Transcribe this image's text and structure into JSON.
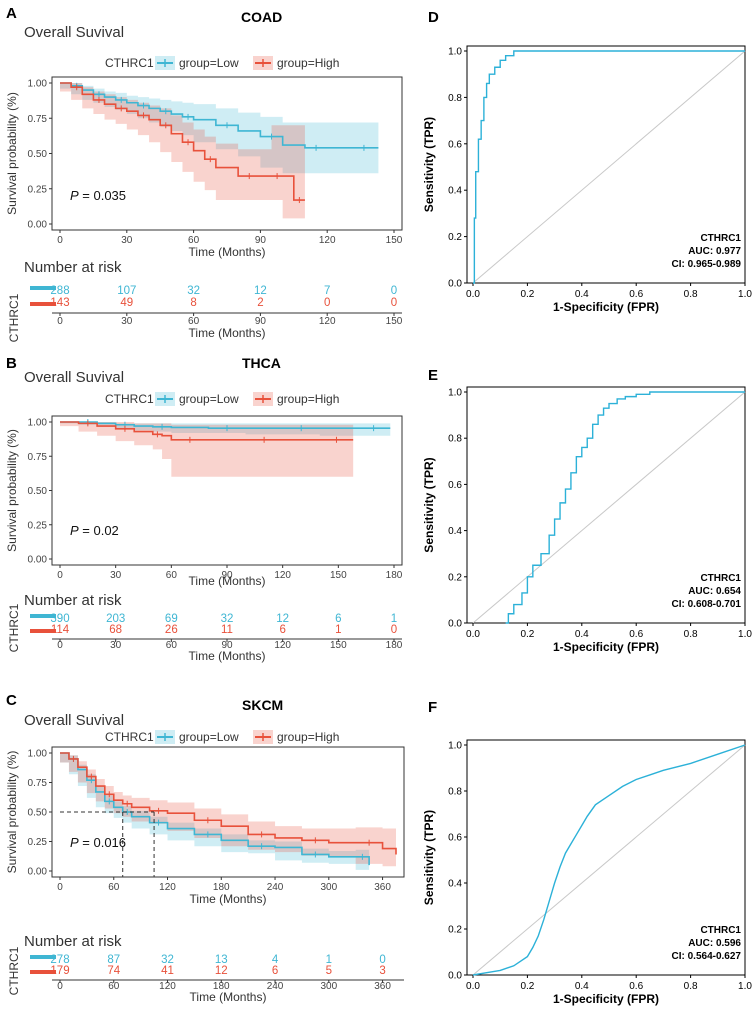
{
  "colors": {
    "low": "#3fb6d3",
    "high": "#e8513b",
    "roc": "#2cb1d8",
    "diag": "#c8c8c8"
  },
  "chart_data": [
    {
      "type": "line",
      "panel": "A",
      "title": "COAD",
      "subtitle": "Overall Suvival",
      "legend_title": "CTHRC1",
      "legend": [
        "group=Low",
        "group=High"
      ],
      "xlabel": "Time (Months)",
      "ylabel": "Survival probability (%)",
      "xlim": [
        0,
        150
      ],
      "ylim": [
        0,
        1
      ],
      "xticks": [
        0,
        30,
        60,
        90,
        120,
        150
      ],
      "yticks": [
        "0.00",
        "0.25",
        "0.50",
        "0.75",
        "1.00"
      ],
      "pvalue_label": "P",
      "pvalue": "= 0.035",
      "series": [
        {
          "name": "group=Low",
          "x": [
            0,
            5,
            10,
            15,
            20,
            25,
            30,
            35,
            40,
            45,
            50,
            55,
            60,
            70,
            80,
            90,
            100,
            110,
            120,
            130,
            143
          ],
          "y": [
            1,
            0.98,
            0.95,
            0.92,
            0.9,
            0.88,
            0.86,
            0.84,
            0.82,
            0.8,
            0.78,
            0.76,
            0.74,
            0.7,
            0.66,
            0.62,
            0.56,
            0.54,
            0.54,
            0.54,
            0.54
          ],
          "lower": [
            1,
            0.96,
            0.92,
            0.88,
            0.86,
            0.83,
            0.81,
            0.78,
            0.75,
            0.72,
            0.69,
            0.66,
            0.63,
            0.58,
            0.53,
            0.48,
            0.4,
            0.36,
            0.36,
            0.36,
            0.36
          ],
          "upper": [
            1,
            1,
            0.98,
            0.96,
            0.94,
            0.93,
            0.91,
            0.9,
            0.89,
            0.88,
            0.87,
            0.86,
            0.85,
            0.82,
            0.79,
            0.76,
            0.72,
            0.72,
            0.72,
            0.72,
            0.72
          ]
        },
        {
          "name": "group=High",
          "x": [
            0,
            5,
            10,
            15,
            20,
            25,
            30,
            35,
            40,
            45,
            50,
            55,
            60,
            65,
            70,
            80,
            90,
            95,
            100,
            105,
            110
          ],
          "y": [
            1,
            0.97,
            0.92,
            0.88,
            0.85,
            0.82,
            0.8,
            0.77,
            0.74,
            0.7,
            0.64,
            0.58,
            0.52,
            0.46,
            0.4,
            0.34,
            0.34,
            0.34,
            0.34,
            0.17,
            0.17
          ],
          "lower": [
            1,
            0.94,
            0.88,
            0.82,
            0.78,
            0.74,
            0.71,
            0.67,
            0.63,
            0.58,
            0.51,
            0.44,
            0.37,
            0.3,
            0.24,
            0.17,
            0.17,
            0.17,
            0.17,
            0.04,
            0.04
          ],
          "upper": [
            1,
            1,
            0.97,
            0.94,
            0.92,
            0.9,
            0.88,
            0.86,
            0.84,
            0.82,
            0.77,
            0.72,
            0.67,
            0.62,
            0.57,
            0.53,
            0.53,
            0.7,
            0.7,
            0.7,
            0.7
          ]
        }
      ],
      "risk_table": {
        "title": "Number at risk",
        "strata_label": "CTHRC1",
        "low": [
          "288",
          "107",
          "32",
          "12",
          "7",
          "0"
        ],
        "high": [
          "143",
          "49",
          "8",
          "2",
          "0",
          "0"
        ]
      }
    },
    {
      "type": "line",
      "panel": "B",
      "title": "THCA",
      "subtitle": "Overall Suvival",
      "legend_title": "CTHRC1",
      "legend": [
        "group=Low",
        "group=High"
      ],
      "xlabel": "Time (Months)",
      "ylabel": "Survival probability (%)",
      "xlim": [
        0,
        180
      ],
      "ylim": [
        0,
        1
      ],
      "xticks": [
        0,
        30,
        60,
        90,
        120,
        150,
        180
      ],
      "yticks": [
        "0.00",
        "0.25",
        "0.50",
        "0.75",
        "1.00"
      ],
      "pvalue_label": "P",
      "pvalue": "= 0.02",
      "series": [
        {
          "name": "group=Low",
          "x": [
            0,
            10,
            20,
            30,
            40,
            50,
            60,
            80,
            100,
            120,
            140,
            160,
            178
          ],
          "y": [
            1,
            1,
            0.99,
            0.98,
            0.97,
            0.965,
            0.96,
            0.955,
            0.955,
            0.955,
            0.955,
            0.955,
            0.955
          ],
          "lower": [
            1,
            0.99,
            0.98,
            0.97,
            0.95,
            0.94,
            0.93,
            0.92,
            0.92,
            0.91,
            0.91,
            0.9,
            0.9
          ],
          "upper": [
            1,
            1,
            1,
            0.99,
            0.99,
            0.99,
            0.99,
            0.99,
            0.99,
            0.99,
            0.99,
            0.99,
            0.99
          ]
        },
        {
          "name": "group=High",
          "x": [
            0,
            10,
            20,
            30,
            40,
            50,
            55,
            60,
            80,
            100,
            120,
            140,
            158
          ],
          "y": [
            1,
            0.99,
            0.97,
            0.95,
            0.93,
            0.91,
            0.9,
            0.87,
            0.87,
            0.87,
            0.87,
            0.87,
            0.87
          ],
          "lower": [
            1,
            0.97,
            0.93,
            0.9,
            0.86,
            0.83,
            0.8,
            0.73,
            0.6,
            0.6,
            0.6,
            0.6,
            0.6
          ],
          "upper": [
            1,
            1,
            1,
            1,
            0.99,
            0.99,
            0.99,
            0.98,
            0.98,
            0.98,
            0.98,
            0.98,
            0.98
          ]
        }
      ],
      "risk_table": {
        "title": "Number at risk",
        "strata_label": "CTHRC1",
        "low": [
          "390",
          "203",
          "69",
          "32",
          "12",
          "6",
          "1"
        ],
        "high": [
          "114",
          "68",
          "26",
          "11",
          "6",
          "1",
          "0"
        ]
      }
    },
    {
      "type": "line",
      "panel": "C",
      "title": "SKCM",
      "subtitle": "Overall Suvival",
      "legend_title": "CTHRC1",
      "legend": [
        "group=Low",
        "group=High"
      ],
      "xlabel": "Time (Months)",
      "ylabel": "Survival probability (%)",
      "xlim": [
        0,
        375
      ],
      "ylim": [
        0,
        1
      ],
      "xticks": [
        0,
        60,
        120,
        180,
        240,
        300,
        360
      ],
      "yticks": [
        "0.00",
        "0.25",
        "0.50",
        "0.75",
        "1.00"
      ],
      "median_low": 70,
      "median_high": 105,
      "pvalue_label": "P",
      "pvalue": "= 0.016",
      "series": [
        {
          "name": "group=Low",
          "x": [
            0,
            10,
            20,
            30,
            40,
            50,
            60,
            70,
            80,
            100,
            120,
            150,
            180,
            210,
            240,
            270,
            300,
            330,
            345
          ],
          "y": [
            1,
            0.95,
            0.86,
            0.77,
            0.67,
            0.59,
            0.54,
            0.5,
            0.46,
            0.41,
            0.36,
            0.31,
            0.26,
            0.21,
            0.2,
            0.14,
            0.12,
            0.12,
            0.05
          ],
          "lower": [
            1,
            0.92,
            0.82,
            0.72,
            0.62,
            0.54,
            0.49,
            0.45,
            0.41,
            0.36,
            0.31,
            0.26,
            0.21,
            0.16,
            0.15,
            0.09,
            0.07,
            0.06,
            0.01
          ],
          "upper": [
            1,
            0.98,
            0.9,
            0.82,
            0.72,
            0.64,
            0.59,
            0.55,
            0.51,
            0.46,
            0.41,
            0.36,
            0.31,
            0.26,
            0.25,
            0.19,
            0.17,
            0.18,
            0.12
          ]
        },
        {
          "name": "group=High",
          "x": [
            0,
            10,
            20,
            30,
            40,
            50,
            60,
            70,
            80,
            100,
            120,
            150,
            180,
            210,
            240,
            270,
            300,
            330,
            360,
            375
          ],
          "y": [
            1,
            0.95,
            0.88,
            0.8,
            0.72,
            0.65,
            0.6,
            0.57,
            0.54,
            0.51,
            0.49,
            0.43,
            0.38,
            0.31,
            0.28,
            0.26,
            0.24,
            0.24,
            0.19,
            0.14
          ],
          "lower": [
            1,
            0.92,
            0.84,
            0.75,
            0.66,
            0.59,
            0.53,
            0.49,
            0.46,
            0.42,
            0.4,
            0.34,
            0.28,
            0.21,
            0.18,
            0.16,
            0.13,
            0.12,
            0.06,
            0.04
          ],
          "upper": [
            1,
            0.98,
            0.93,
            0.86,
            0.78,
            0.72,
            0.67,
            0.64,
            0.62,
            0.6,
            0.58,
            0.53,
            0.48,
            0.42,
            0.38,
            0.36,
            0.36,
            0.37,
            0.36,
            0.33
          ]
        }
      ],
      "risk_table": {
        "title": "Number at risk",
        "strata_label": "CTHRC1",
        "low": [
          "278",
          "87",
          "32",
          "13",
          "4",
          "1",
          "0"
        ],
        "high": [
          "179",
          "74",
          "41",
          "12",
          "6",
          "5",
          "3"
        ]
      }
    },
    {
      "type": "line",
      "panel": "D",
      "xlabel": "1-Specificity (FPR)",
      "ylabel": "Sensitivity (TPR)",
      "xlim": [
        0,
        1
      ],
      "ylim": [
        0,
        1
      ],
      "ticks": [
        "0.0",
        "0.2",
        "0.4",
        "0.6",
        "0.8",
        "1.0"
      ],
      "annotation": [
        "CTHRC1",
        "AUC: 0.977",
        "CI: 0.965-0.989"
      ],
      "series": [
        {
          "name": "ROC",
          "x": [
            0,
            0.005,
            0.005,
            0.01,
            0.01,
            0.02,
            0.02,
            0.03,
            0.03,
            0.04,
            0.04,
            0.05,
            0.05,
            0.06,
            0.06,
            0.08,
            0.08,
            0.1,
            0.1,
            0.12,
            0.12,
            0.15,
            0.15,
            1
          ],
          "y": [
            0,
            0,
            0.28,
            0.28,
            0.48,
            0.48,
            0.62,
            0.62,
            0.7,
            0.7,
            0.8,
            0.8,
            0.86,
            0.86,
            0.9,
            0.9,
            0.93,
            0.93,
            0.96,
            0.96,
            0.98,
            0.98,
            1,
            1
          ]
        }
      ]
    },
    {
      "type": "line",
      "panel": "E",
      "xlabel": "1-Specificity (FPR)",
      "ylabel": "Sensitivity (TPR)",
      "xlim": [
        0,
        1
      ],
      "ylim": [
        0,
        1
      ],
      "ticks": [
        "0.0",
        "0.2",
        "0.4",
        "0.6",
        "0.8",
        "1.0"
      ],
      "annotation": [
        "CTHRC1",
        "AUC: 0.654",
        "CI: 0.608-0.701"
      ],
      "series": [
        {
          "name": "ROC",
          "x": [
            0.12,
            0.13,
            0.13,
            0.15,
            0.15,
            0.18,
            0.18,
            0.2,
            0.2,
            0.22,
            0.22,
            0.25,
            0.25,
            0.28,
            0.28,
            0.3,
            0.3,
            0.32,
            0.32,
            0.34,
            0.34,
            0.36,
            0.36,
            0.38,
            0.38,
            0.4,
            0.4,
            0.42,
            0.42,
            0.44,
            0.44,
            0.46,
            0.46,
            0.48,
            0.48,
            0.5,
            0.5,
            0.53,
            0.53,
            0.56,
            0.56,
            0.6,
            0.6,
            0.65,
            0.65,
            0.7,
            0.7,
            1
          ],
          "y": [
            0,
            0,
            0.04,
            0.04,
            0.08,
            0.08,
            0.13,
            0.13,
            0.2,
            0.2,
            0.25,
            0.25,
            0.3,
            0.3,
            0.38,
            0.38,
            0.45,
            0.45,
            0.52,
            0.52,
            0.58,
            0.58,
            0.65,
            0.65,
            0.72,
            0.72,
            0.76,
            0.76,
            0.8,
            0.8,
            0.86,
            0.86,
            0.9,
            0.9,
            0.93,
            0.93,
            0.95,
            0.95,
            0.97,
            0.97,
            0.98,
            0.98,
            0.99,
            0.99,
            1,
            1,
            1,
            1
          ]
        }
      ]
    },
    {
      "type": "line",
      "panel": "F",
      "xlabel": "1-Specificity (FPR)",
      "ylabel": "Sensitivity (TPR)",
      "xlim": [
        0,
        1
      ],
      "ylim": [
        0,
        1
      ],
      "ticks": [
        "0.0",
        "0.2",
        "0.4",
        "0.6",
        "0.8",
        "1.0"
      ],
      "annotation": [
        "CTHRC1",
        "AUC: 0.596",
        "CI: 0.564-0.627"
      ],
      "series": [
        {
          "name": "ROC",
          "x": [
            0,
            0.05,
            0.1,
            0.15,
            0.2,
            0.22,
            0.24,
            0.26,
            0.28,
            0.3,
            0.32,
            0.34,
            0.36,
            0.38,
            0.4,
            0.42,
            0.45,
            0.5,
            0.55,
            0.6,
            0.65,
            0.7,
            0.8,
            0.9,
            1
          ],
          "y": [
            0,
            0.01,
            0.02,
            0.04,
            0.08,
            0.12,
            0.17,
            0.24,
            0.32,
            0.4,
            0.47,
            0.53,
            0.57,
            0.61,
            0.65,
            0.69,
            0.74,
            0.78,
            0.82,
            0.85,
            0.87,
            0.89,
            0.92,
            0.96,
            1
          ]
        }
      ]
    }
  ]
}
